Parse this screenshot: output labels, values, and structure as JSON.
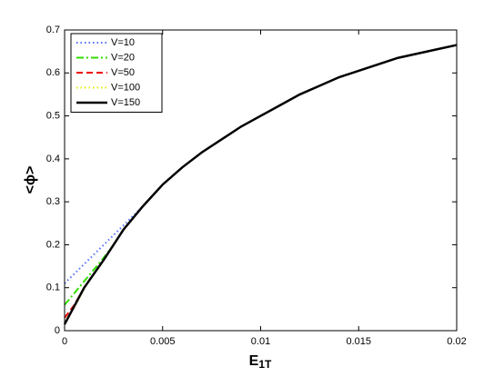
{
  "chart_data": {
    "type": "line",
    "xlabel": {
      "main": "E",
      "sub": "1T"
    },
    "ylabel": "<ϕ>",
    "xlim": [
      0,
      0.02
    ],
    "xticks": [
      0,
      0.005,
      0.01,
      0.015,
      0.02
    ],
    "ylim": [
      0,
      0.7
    ],
    "yticks": [
      0,
      0.1,
      0.2,
      0.3,
      0.4,
      0.5,
      0.6,
      0.7
    ],
    "legend": "upper left",
    "series": [
      {
        "name": "V=10",
        "color": "#4f6fff",
        "style": "dotted",
        "x": [
          0,
          0.001,
          0.002,
          0.003,
          0.004,
          0.005
        ],
        "values": [
          0.11,
          0.155,
          0.2,
          0.245,
          0.29,
          0.34
        ]
      },
      {
        "name": "V=20",
        "color": "#33dd00",
        "style": "dashdot",
        "x": [
          0,
          0.001,
          0.002,
          0.0025
        ],
        "values": [
          0.06,
          0.115,
          0.17,
          0.2
        ]
      },
      {
        "name": "V=50",
        "color": "#ee0000",
        "style": "dashed",
        "x": [
          0,
          0.0005,
          0.001
        ],
        "values": [
          0.03,
          0.06,
          0.1
        ]
      },
      {
        "name": "V=100",
        "color": "#e8e800",
        "style": "dotted",
        "x": [
          0,
          0.0005,
          0.001
        ],
        "values": [
          0.02,
          0.055,
          0.098
        ]
      },
      {
        "name": "V=150",
        "color": "#000000",
        "style": "solid",
        "x": [
          0,
          0.001,
          0.002,
          0.003,
          0.004,
          0.005,
          0.006,
          0.007,
          0.008,
          0.009,
          0.01,
          0.011,
          0.012,
          0.013,
          0.014,
          0.015,
          0.016,
          0.017,
          0.018,
          0.019,
          0.02
        ],
        "values": [
          0.015,
          0.1,
          0.165,
          0.235,
          0.29,
          0.34,
          0.38,
          0.415,
          0.445,
          0.475,
          0.5,
          0.525,
          0.55,
          0.57,
          0.59,
          0.605,
          0.62,
          0.635,
          0.645,
          0.655,
          0.665
        ]
      }
    ]
  }
}
